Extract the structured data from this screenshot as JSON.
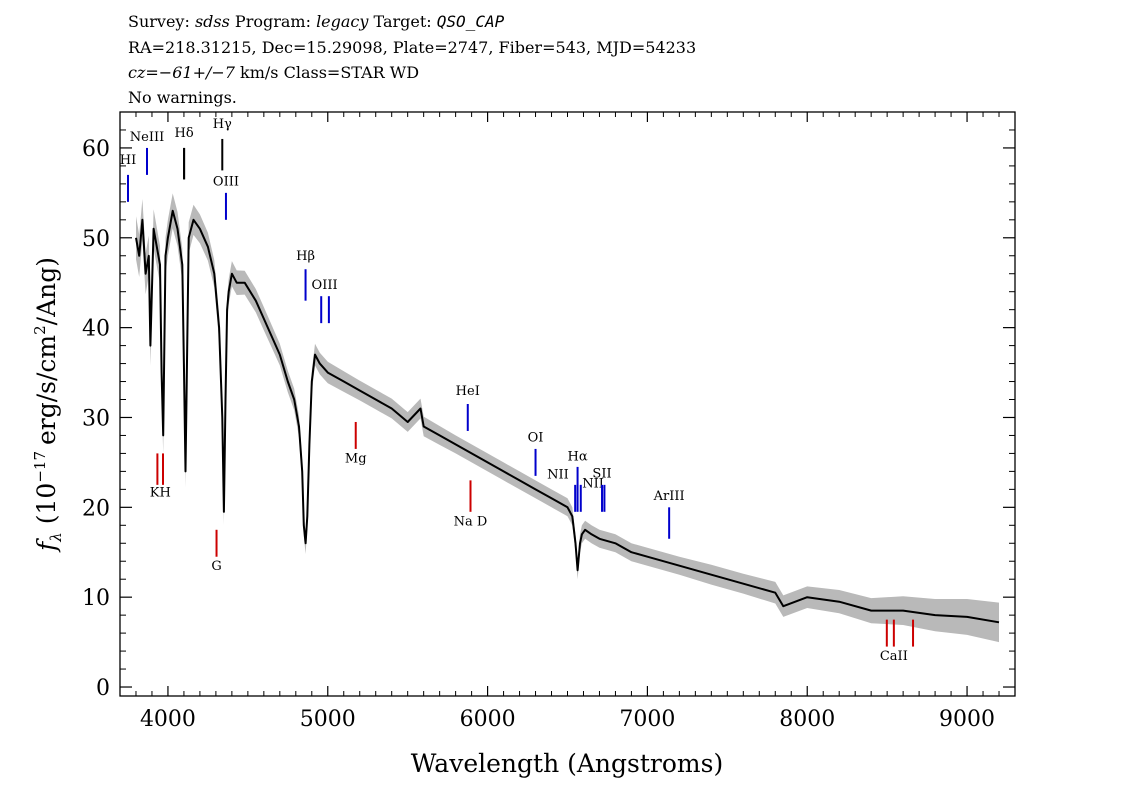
{
  "header": {
    "survey_label": "Survey:",
    "survey": "sdss",
    "program_label": "Program:",
    "program": "legacy",
    "target_label": "Target:",
    "target": "QSO_CAP",
    "coords": "RA=218.31215, Dec=15.29098, Plate=2747, Fiber=543, MJD=54233",
    "cz_label": "cz=",
    "cz_value": "−61+/−7",
    "cz_unit_class": "km/s Class=STAR WD",
    "warnings": "No warnings."
  },
  "chart_data": {
    "type": "line",
    "xlabel": "Wavelength (Angstroms)",
    "ylabel_sym": "f",
    "ylabel_sub": "λ",
    "ylabel_paren": "(10",
    "ylabel_exp": "−17",
    "ylabel_units": "erg/s/cm",
    "ylabel_sq": "2",
    "ylabel_tail": "/Ang)",
    "xlim": [
      3700,
      9300
    ],
    "ylim": [
      -1,
      64
    ],
    "x_ticks": [
      4000,
      5000,
      6000,
      7000,
      8000,
      9000
    ],
    "x_tick_labels": [
      "4000",
      "5000",
      "6000",
      "7000",
      "8000",
      "9000"
    ],
    "y_ticks": [
      0,
      10,
      20,
      30,
      40,
      50,
      60
    ],
    "y_tick_labels": [
      "0",
      "10",
      "20",
      "30",
      "40",
      "50",
      "60"
    ],
    "grid": false,
    "series": [
      {
        "color": "#000000",
        "x": [
          3800,
          3820,
          3840,
          3860,
          3880,
          3890,
          3910,
          3930,
          3950,
          3960,
          3970,
          3985,
          4000,
          4030,
          4060,
          4090,
          4100,
          4110,
          4130,
          4160,
          4200,
          4250,
          4290,
          4320,
          4340,
          4350,
          4360,
          4370,
          4380,
          4400,
          4430,
          4480,
          4550,
          4600,
          4650,
          4700,
          4750,
          4790,
          4820,
          4840,
          4850,
          4861,
          4872,
          4885,
          4900,
          4920,
          4950,
          5000,
          5100,
          5200,
          5300,
          5400,
          5500,
          5580,
          5600,
          5700,
          5800,
          5900,
          6000,
          6100,
          6200,
          6300,
          6400,
          6500,
          6530,
          6550,
          6563,
          6578,
          6590,
          6610,
          6650,
          6700,
          6800,
          6900,
          7000,
          7200,
          7400,
          7600,
          7800,
          7850,
          8000,
          8200,
          8400,
          8600,
          8800,
          9000,
          9200
        ],
        "y": [
          50,
          48,
          52,
          46,
          48,
          38,
          51,
          49,
          47,
          35,
          28,
          48,
          50,
          53,
          51,
          47,
          36,
          24,
          50,
          52,
          51,
          49,
          46,
          40,
          30,
          19.5,
          32,
          42,
          44,
          46,
          45,
          45,
          43,
          41,
          39,
          37,
          34,
          32,
          29,
          24,
          18,
          16,
          19,
          27,
          34,
          37,
          36,
          35,
          34,
          33,
          32,
          31,
          29.5,
          31,
          29,
          28,
          27,
          26,
          25,
          24,
          23,
          22,
          21,
          20,
          19,
          16,
          13,
          16,
          17,
          17.5,
          17,
          16.5,
          16,
          15,
          14.5,
          13.5,
          12.5,
          11.5,
          10.5,
          9,
          10,
          9.5,
          8.5,
          8.5,
          8,
          7.8,
          7.2
        ]
      }
    ],
    "error_band": {
      "color": "#b9b9b9",
      "x": [
        3800,
        3900,
        4000,
        4100,
        4200,
        4300,
        4400,
        4500,
        4600,
        4700,
        4800,
        4900,
        5000,
        5200,
        5400,
        5600,
        5800,
        6000,
        6200,
        6400,
        6600,
        6800,
        7000,
        7200,
        7400,
        7600,
        7800,
        8000,
        8200,
        8400,
        8600,
        8800,
        9000,
        9200
      ],
      "y": [
        2.4,
        2.2,
        2.0,
        1.8,
        1.6,
        1.5,
        1.4,
        1.3,
        1.3,
        1.2,
        1.2,
        1.2,
        1.2,
        1.1,
        1.1,
        1.1,
        1.0,
        1.0,
        1.0,
        1.0,
        1.0,
        1.0,
        1.0,
        1.0,
        1.1,
        1.1,
        1.2,
        1.2,
        1.3,
        1.4,
        1.6,
        1.8,
        2.0,
        2.2
      ]
    },
    "emission_lines": [
      {
        "label": "HI",
        "x": 3750,
        "y_top": 57,
        "y_bot": 54,
        "color": "#0000cc",
        "lx": 3750,
        "ly": 58.2
      },
      {
        "label": "NeIII",
        "x": 3869,
        "y_top": 60,
        "y_bot": 57,
        "color": "#0000cc",
        "lx": 3869,
        "ly": 60.8
      },
      {
        "label": "OIII",
        "x": 4363,
        "y_top": 55,
        "y_bot": 52,
        "color": "#0000cc",
        "lx": 4363,
        "ly": 55.8
      },
      {
        "label": "Hβ",
        "x": 4861,
        "y_top": 46.5,
        "y_bot": 43,
        "color": "#0000cc",
        "lx": 4861,
        "ly": 47.5
      },
      {
        "label": "OIII",
        "x": 4959,
        "y_top": 43.5,
        "y_bot": 40.5,
        "color": "#0000cc",
        "lx": 4980,
        "ly": 44.3
      },
      {
        "label": "",
        "x": 5007,
        "y_top": 43.5,
        "y_bot": 40.5,
        "color": "#0000cc",
        "lx": 5007,
        "ly": 44.3
      },
      {
        "label": "HeI",
        "x": 5876,
        "y_top": 31.5,
        "y_bot": 28.5,
        "color": "#0000cc",
        "lx": 5876,
        "ly": 32.5
      },
      {
        "label": "OI",
        "x": 6300,
        "y_top": 26.5,
        "y_bot": 23.5,
        "color": "#0000cc",
        "lx": 6300,
        "ly": 27.3
      },
      {
        "label": "NII",
        "x": 6548,
        "y_top": 22.5,
        "y_bot": 19.5,
        "color": "#0000cc",
        "lx": 6440,
        "ly": 23.2
      },
      {
        "label": "Hα",
        "x": 6563,
        "y_top": 24.5,
        "y_bot": 19.5,
        "color": "#0000cc",
        "lx": 6563,
        "ly": 25.2
      },
      {
        "label": "NII",
        "x": 6583,
        "y_top": 22.5,
        "y_bot": 19.5,
        "color": "#0000cc",
        "lx": 6660,
        "ly": 22.2
      },
      {
        "label": "SII",
        "x": 6716,
        "y_top": 22.5,
        "y_bot": 19.5,
        "color": "#0000cc",
        "lx": 6716,
        "ly": 23.3
      },
      {
        "label": "",
        "x": 6731,
        "y_top": 22.5,
        "y_bot": 19.5,
        "color": "#0000cc",
        "lx": 6731,
        "ly": 23.3
      },
      {
        "label": "ArIII",
        "x": 7136,
        "y_top": 20.0,
        "y_bot": 16.5,
        "color": "#0000cc",
        "lx": 7136,
        "ly": 20.8
      }
    ],
    "absorption_lines": [
      {
        "label": "",
        "x": 3934,
        "y_top": 26,
        "y_bot": 22.5,
        "color": "#cc0000"
      },
      {
        "label": "KH",
        "x": 3969,
        "y_top": 26,
        "y_bot": 22.5,
        "color": "#cc0000",
        "lx": 3952,
        "ly": 21.2
      },
      {
        "label": "",
        "x": 4101,
        "y_top": 60,
        "y_bot": 56.5,
        "color": "#000000"
      },
      {
        "label": "Hδ",
        "x": 4101,
        "y_top": 60,
        "y_bot": 56.5,
        "color": "#000000",
        "lx": 4101,
        "ly": 61.2
      },
      {
        "label": "Hγ",
        "x": 4340,
        "y_top": 61,
        "y_bot": 57.5,
        "color": "#000000",
        "lx": 4340,
        "ly": 62.2
      },
      {
        "label": "G",
        "x": 4304,
        "y_top": 17.5,
        "y_bot": 14.5,
        "color": "#cc0000",
        "lx": 4304,
        "ly": 13.0
      },
      {
        "label": "Mg",
        "x": 5175,
        "y_top": 29.5,
        "y_bot": 26.5,
        "color": "#cc0000",
        "lx": 5175,
        "ly": 25.0
      },
      {
        "label": "Na  D",
        "x": 5893,
        "y_top": 23,
        "y_bot": 19.5,
        "color": "#cc0000",
        "lx": 5893,
        "ly": 18.0
      },
      {
        "label": "",
        "x": 8498,
        "y_top": 7.5,
        "y_bot": 4.5,
        "color": "#cc0000"
      },
      {
        "label": "CaII",
        "x": 8542,
        "y_top": 7.5,
        "y_bot": 4.5,
        "color": "#cc0000",
        "lx": 8542,
        "ly": 3.0
      },
      {
        "label": "",
        "x": 8662,
        "y_top": 7.5,
        "y_bot": 4.5,
        "color": "#cc0000"
      }
    ]
  }
}
